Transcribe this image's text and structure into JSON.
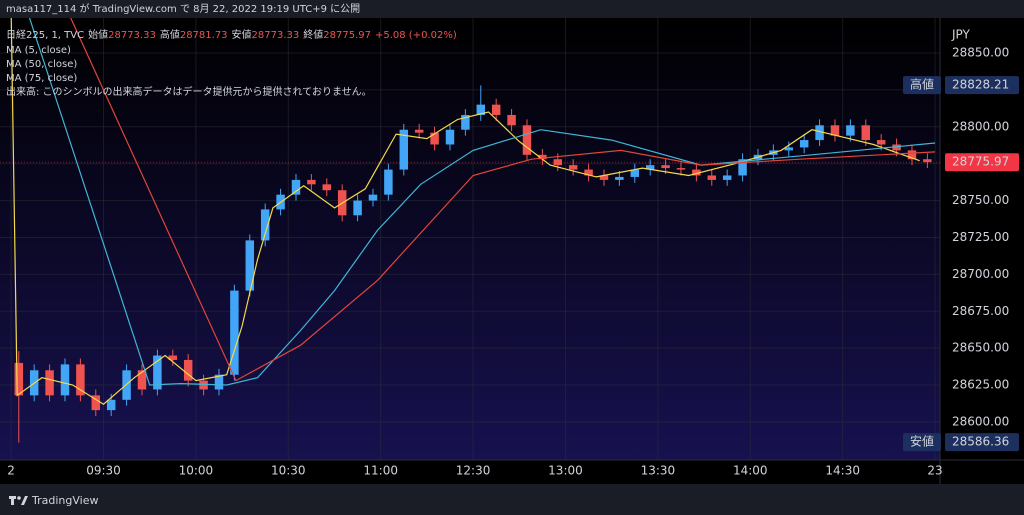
{
  "header": {
    "publisher": "masa117_114 が TradingView.com で 8月 22, 2022 19:19 UTC+9 に公開"
  },
  "chart_data": {
    "type": "candlestick",
    "symbol": "日経225, 1, TVC",
    "ohlc": [
      {
        "label": "始値",
        "value": 28773.33
      },
      {
        "label": "高値",
        "value": 28781.73
      },
      {
        "label": "安値",
        "value": 28773.33
      },
      {
        "label": "終値",
        "value": 28775.97
      }
    ],
    "change": "+5.08 (+0.02%)",
    "volume_note": "出来高: このシンボルの出来高データはデータ提供元から提供されておりません。",
    "y_axis_label": "JPY",
    "up_color": "#42a5f5",
    "down_color": "#ef5350",
    "x": [
      0,
      5,
      10,
      15,
      20,
      25,
      30,
      35,
      40,
      45,
      50,
      55,
      60,
      65,
      70,
      75,
      80,
      85,
      90,
      95,
      100,
      105,
      110,
      115,
      120,
      125,
      130,
      135,
      140,
      145,
      150,
      155,
      160,
      165,
      170,
      175,
      180,
      185,
      190,
      195,
      200,
      205,
      210,
      215,
      220,
      225,
      230,
      235,
      240,
      245,
      250,
      255,
      260,
      265,
      270,
      275,
      280,
      285,
      290,
      295
    ],
    "open": [
      28640,
      28618,
      28635,
      28618,
      28639,
      28618,
      28608,
      28615,
      28635,
      28622,
      28645,
      28642,
      28628,
      28622,
      28632,
      28689,
      28723,
      28744,
      28754,
      28764,
      28761,
      28757,
      28740,
      28750,
      28754,
      28771,
      28798,
      28796,
      28788,
      28798,
      28808,
      28815,
      28808,
      28801,
      28781,
      28778,
      28774,
      28771,
      28767,
      28764,
      28766,
      28771,
      28774,
      28772,
      28771,
      28767,
      28764,
      28767,
      28778,
      28781,
      28784,
      28786,
      28791,
      28801,
      28794,
      28801,
      28791,
      28788,
      28784,
      28778
    ],
    "high": [
      28648,
      28639,
      28639,
      28643,
      28643,
      28622,
      28619,
      28639,
      28639,
      28649,
      28649,
      28646,
      28632,
      28636,
      28693,
      28727,
      28748,
      28758,
      28768,
      28768,
      28765,
      28761,
      28754,
      28758,
      28775,
      28802,
      28802,
      28800,
      28802,
      28812,
      28828,
      28819,
      28812,
      28805,
      28785,
      28782,
      28778,
      28775,
      28771,
      28770,
      28775,
      28778,
      28778,
      28776,
      28775,
      28771,
      28771,
      28782,
      28785,
      28788,
      28790,
      28795,
      28805,
      28805,
      28805,
      28805,
      28795,
      28792,
      28788,
      28782
    ],
    "low": [
      28586,
      28614,
      28614,
      28614,
      28614,
      28604,
      28604,
      28611,
      28618,
      28618,
      28638,
      28624,
      28618,
      28618,
      28628,
      28685,
      28719,
      28740,
      28750,
      28757,
      28753,
      28736,
      28736,
      28746,
      28750,
      28767,
      28792,
      28784,
      28784,
      28794,
      28804,
      28804,
      28797,
      28777,
      28774,
      28770,
      28767,
      28763,
      28760,
      28760,
      28762,
      28767,
      28768,
      28767,
      28763,
      28760,
      28760,
      28763,
      28774,
      28777,
      28780,
      28782,
      28787,
      28790,
      28790,
      28787,
      28784,
      28780,
      28774,
      28772
    ],
    "close": [
      28618,
      28635,
      28618,
      28639,
      28618,
      28608,
      28615,
      28635,
      28622,
      28645,
      28642,
      28628,
      28622,
      28632,
      28689,
      28723,
      28744,
      28754,
      28764,
      28761,
      28757,
      28740,
      28750,
      28754,
      28771,
      28798,
      28796,
      28788,
      28798,
      28808,
      28815,
      28808,
      28801,
      28781,
      28778,
      28774,
      28771,
      28767,
      28764,
      28766,
      28771,
      28774,
      28772,
      28771,
      28767,
      28764,
      28767,
      28778,
      28781,
      28784,
      28786,
      28791,
      28801,
      28794,
      28801,
      28791,
      28788,
      28784,
      28778,
      28776
    ],
    "series": [
      {
        "name": "MA (5, close)",
        "color": "#f5d94a",
        "x": [
          0,
          2,
          10,
          20,
          30,
          40,
          50,
          60,
          70,
          75,
          80,
          85,
          95,
          105,
          115,
          125,
          135,
          145,
          155,
          165,
          175,
          190,
          205,
          220,
          235,
          250,
          260,
          270,
          280,
          295
        ],
        "values": [
          28880,
          28618,
          28630,
          28625,
          28612,
          28630,
          28645,
          28628,
          28632,
          28665,
          28710,
          28745,
          28760,
          28745,
          28758,
          28795,
          28792,
          28805,
          28810,
          28790,
          28774,
          28766,
          28772,
          28767,
          28775,
          28784,
          28798,
          28793,
          28788,
          28777
        ]
      },
      {
        "name": "MA (50, close)",
        "color": "#3fb6d6",
        "x": [
          5,
          45,
          55,
          70,
          80,
          94,
          105,
          119,
          133,
          150,
          172,
          195,
          224,
          260,
          300
        ],
        "values": [
          28880,
          28625,
          28626,
          28625,
          28630,
          28662,
          28689,
          28730,
          28761,
          28784,
          28798,
          28791,
          28774,
          28781,
          28789
        ]
      },
      {
        "name": "MA (75, close)",
        "color": "#e2453a",
        "x": [
          18,
          73,
          94,
          119,
          150,
          169,
          198,
          224,
          256,
          300
        ],
        "values": [
          28880,
          28628,
          28652,
          28696,
          28767,
          28778,
          28784,
          28774,
          28778,
          28783
        ]
      }
    ],
    "xlim": [
      -3.6,
      301.6
    ],
    "xticks": [
      {
        "value": 0,
        "label": "2"
      },
      {
        "value": 30,
        "label": "09:30"
      },
      {
        "value": 60,
        "label": "10:00"
      },
      {
        "value": 90,
        "label": "10:30"
      },
      {
        "value": 120,
        "label": "11:00"
      },
      {
        "value": 150,
        "label": "12:30"
      },
      {
        "value": 180,
        "label": "13:00"
      },
      {
        "value": 210,
        "label": "13:30"
      },
      {
        "value": 240,
        "label": "14:00"
      },
      {
        "value": 270,
        "label": "14:30"
      },
      {
        "value": 300,
        "label": "23"
      }
    ],
    "ylim": [
      28577.6,
      28873.7
    ],
    "yticks": [
      {
        "value": 28600,
        "label": "28600.00"
      },
      {
        "value": 28625,
        "label": "28625.00"
      },
      {
        "value": 28650,
        "label": "28650.00"
      },
      {
        "value": 28675,
        "label": "28675.00"
      },
      {
        "value": 28700,
        "label": "28700.00"
      },
      {
        "value": 28725,
        "label": "28725.00"
      },
      {
        "value": 28750,
        "label": "28750.00"
      },
      {
        "value": 28775,
        "label": "28775.00"
      },
      {
        "value": 28800,
        "label": "28800.00"
      },
      {
        "value": 28825,
        "label": "28825.00"
      },
      {
        "value": 28850,
        "label": "28850.00"
      }
    ],
    "grid": true,
    "price_labels": [
      {
        "label": "高値",
        "value": 28828.21,
        "color": "#1c2f5e"
      },
      {
        "value": 28775.97,
        "color": "#f23645"
      },
      {
        "label": "安値",
        "value": 28586.36,
        "color": "#1c2f5e"
      }
    ]
  },
  "footer": {
    "brand": "TradingView"
  }
}
